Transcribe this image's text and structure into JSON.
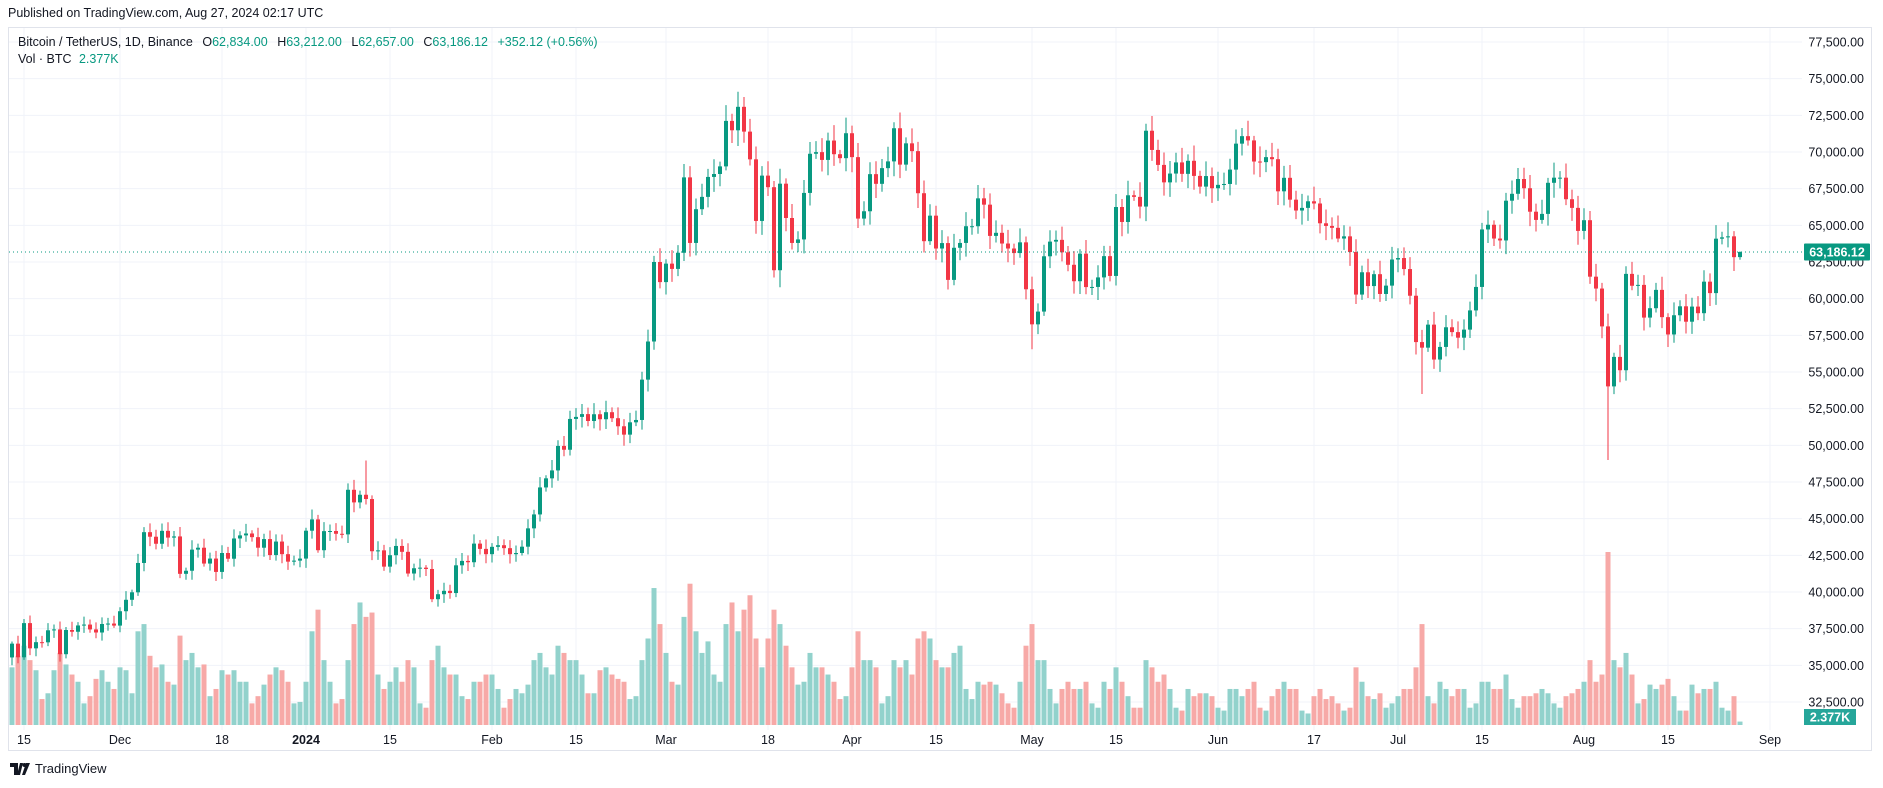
{
  "published": "Published on TradingView.com, Aug 27, 2024 02:17 UTC",
  "legend": {
    "symbol": "Bitcoin / TetherUS, 1D, Binance",
    "o_label": "O",
    "o": "62,834.00",
    "h_label": "H",
    "h": "63,212.00",
    "l_label": "L",
    "l": "62,657.00",
    "c_label": "C",
    "c": "63,186.12",
    "change": "+352.12 (+0.56%)",
    "vol_label": "Vol · BTC",
    "vol": "2.377K"
  },
  "footer": {
    "brand": "TradingView"
  },
  "colors": {
    "up": "#089981",
    "down": "#F23645",
    "vol_up": "#92D2CC",
    "vol_down": "#F7A9A7",
    "grid": "#F0F3FA",
    "last_price": "#089981",
    "vol_badge": "#26A69A"
  },
  "chart_data": {
    "type": "candlestick",
    "title": "Bitcoin / TetherUS, 1D, Binance",
    "start_date": "2023-11-13",
    "first_open": 35540,
    "ylim": [
      31000,
      78600
    ],
    "y_ticks": [
      {
        "value": 77500,
        "label": "77,500.00"
      },
      {
        "value": 75000,
        "label": "75,000.00"
      },
      {
        "value": 72500,
        "label": "72,500.00"
      },
      {
        "value": 70000,
        "label": "70,000.00"
      },
      {
        "value": 67500,
        "label": "67,500.00"
      },
      {
        "value": 65000,
        "label": "65,000.00"
      },
      {
        "value": 62500,
        "label": "62,500.00"
      },
      {
        "value": 60000,
        "label": "60,000.00"
      },
      {
        "value": 57500,
        "label": "57,500.00"
      },
      {
        "value": 55000,
        "label": "55,000.00"
      },
      {
        "value": 52500,
        "label": "52,500.00"
      },
      {
        "value": 50000,
        "label": "50,000.00"
      },
      {
        "value": 47500,
        "label": "47,500.00"
      },
      {
        "value": 45000,
        "label": "45,000.00"
      },
      {
        "value": 42500,
        "label": "42,500.00"
      },
      {
        "value": 40000,
        "label": "40,000.00"
      },
      {
        "value": 37500,
        "label": "37,500.00"
      },
      {
        "value": 35000,
        "label": "35,000.00"
      },
      {
        "value": 32500,
        "label": "32,500.00"
      }
    ],
    "x_ticks": [
      {
        "date": "2023-11-15",
        "label": "15"
      },
      {
        "date": "2023-12-01",
        "label": "Dec"
      },
      {
        "date": "2023-12-18",
        "label": "18"
      },
      {
        "date": "2024-01-01",
        "label": "2024",
        "bold": true
      },
      {
        "date": "2024-01-15",
        "label": "15"
      },
      {
        "date": "2024-02-01",
        "label": "Feb"
      },
      {
        "date": "2024-02-15",
        "label": "15"
      },
      {
        "date": "2024-03-01",
        "label": "Mar"
      },
      {
        "date": "2024-03-18",
        "label": "18"
      },
      {
        "date": "2024-04-01",
        "label": "Apr"
      },
      {
        "date": "2024-04-15",
        "label": "15"
      },
      {
        "date": "2024-05-01",
        "label": "May"
      },
      {
        "date": "2024-05-15",
        "label": "15"
      },
      {
        "date": "2024-06-01",
        "label": "Jun"
      },
      {
        "date": "2024-06-17",
        "label": "17"
      },
      {
        "date": "2024-07-01",
        "label": "Jul"
      },
      {
        "date": "2024-07-15",
        "label": "15"
      },
      {
        "date": "2024-08-01",
        "label": "Aug"
      },
      {
        "date": "2024-08-15",
        "label": "15"
      },
      {
        "date": "2024-09-01",
        "label": "Sep"
      }
    ],
    "last_price": {
      "value": 63186.12,
      "label": "63,186.12"
    },
    "last_volume": {
      "value": 2.377,
      "label": "2.377K"
    },
    "volume_unit": "K BTC",
    "wick_overrides": {
      "2024-03-14": {
        "high": 73750
      },
      "2024-03-20": {
        "low": 60775
      },
      "2024-08-05": {
        "low": 49000
      },
      "2024-01-11": {
        "high": 48970
      },
      "2024-05-01": {
        "low": 56550
      },
      "2024-07-05": {
        "low": 53500
      }
    },
    "last_candle": {
      "open": 62834.0,
      "high": 63212.0,
      "low": 62657.0,
      "close": 63186.12
    },
    "closes": [
      36480,
      35550,
      37880,
      36160,
      36580,
      36570,
      37390,
      37450,
      35760,
      37410,
      37290,
      37720,
      37780,
      37450,
      37240,
      37820,
      37850,
      37710,
      38690,
      39470,
      39980,
      41980,
      44080,
      43770,
      43290,
      44170,
      43710,
      43790,
      41240,
      41450,
      42890,
      43020,
      41940,
      42280,
      41370,
      42660,
      42270,
      43650,
      43860,
      43990,
      43740,
      43020,
      43610,
      42520,
      43440,
      42580,
      42070,
      42140,
      42280,
      44180,
      44950,
      42850,
      44150,
      44160,
      43970,
      43930,
      46970,
      46110,
      46630,
      46340,
      42780,
      42840,
      41730,
      42510,
      43140,
      42740,
      41260,
      41620,
      41660,
      41570,
      39510,
      39850,
      40080,
      39930,
      41820,
      42120,
      42030,
      43300,
      42940,
      42580,
      43080,
      43190,
      42990,
      42580,
      42660,
      43090,
      44340,
      45290,
      47130,
      47750,
      48290,
      49960,
      49700,
      51800,
      51940,
      52130,
      51660,
      52120,
      51780,
      52260,
      51850,
      51300,
      50730,
      51570,
      51730,
      54480,
      57080,
      62500,
      61130,
      62390,
      62030,
      63130,
      68270,
      63800,
      66100,
      66940,
      68300,
      68500,
      69020,
      72120,
      71480,
      73080,
      71390,
      69500,
      65300,
      68390,
      67600,
      61940,
      67840,
      65500,
      63800,
      64040,
      67210,
      69880,
      69990,
      69460,
      70780,
      69850,
      69580,
      71280,
      69650,
      65460,
      65960,
      68490,
      67830,
      68900,
      69360,
      71620,
      69140,
      70590,
      70060,
      67190,
      63920,
      65660,
      63420,
      63790,
      61280,
      63470,
      63800,
      64940,
      64940,
      66840,
      66410,
      64280,
      64490,
      63760,
      63420,
      63110,
      63840,
      60640,
      58250,
      59120,
      62890,
      63890,
      64010,
      63160,
      62310,
      61190,
      63070,
      60790,
      60800,
      61450,
      62900,
      61550,
      66250,
      65230,
      67050,
      66940,
      66280,
      71450,
      70140,
      69120,
      67930,
      68530,
      69290,
      68510,
      69400,
      68370,
      67640,
      68360,
      67530,
      67760,
      67820,
      68800,
      70570,
      71080,
      70790,
      69350,
      69310,
      69650,
      69510,
      67320,
      68240,
      66750,
      66010,
      66190,
      66640,
      66490,
      65140,
      64960,
      64830,
      64100,
      64250,
      63180,
      60280,
      61800,
      60860,
      61670,
      60320,
      60890,
      62670,
      62770,
      62020,
      60200,
      57040,
      56660,
      58230,
      55850,
      56710,
      58050,
      57720,
      57340,
      57890,
      59200,
      60800,
      64720,
      65040,
      64100,
      63970,
      66680,
      67150,
      68160,
      67530,
      65930,
      65370,
      65780,
      67900,
      68250,
      68250,
      66780,
      66190,
      64620,
      65350,
      61500,
      60690,
      58110,
      54020,
      56030,
      55120,
      61690,
      60880,
      60940,
      58710,
      59350,
      60600,
      58740,
      57560,
      58870,
      59480,
      58430,
      59460,
      59010,
      61160,
      60380,
      64090,
      64180,
      64250,
      62830,
      63186.12
    ],
    "volumes": [
      40,
      48,
      55,
      45,
      38,
      18,
      22,
      38,
      50,
      42,
      35,
      30,
      15,
      20,
      32,
      38,
      30,
      25,
      40,
      38,
      22,
      65,
      70,
      48,
      40,
      42,
      30,
      28,
      62,
      45,
      50,
      40,
      42,
      20,
      25,
      38,
      35,
      38,
      30,
      30,
      15,
      20,
      28,
      35,
      40,
      38,
      30,
      15,
      16,
      30,
      65,
      80,
      45,
      30,
      15,
      18,
      45,
      70,
      85,
      75,
      78,
      35,
      25,
      30,
      40,
      30,
      45,
      40,
      15,
      12,
      45,
      55,
      40,
      35,
      35,
      20,
      18,
      30,
      30,
      35,
      35,
      25,
      12,
      18,
      25,
      22,
      28,
      45,
      50,
      40,
      35,
      55,
      50,
      45,
      45,
      35,
      22,
      22,
      38,
      40,
      35,
      32,
      30,
      18,
      20,
      45,
      60,
      95,
      70,
      50,
      30,
      28,
      75,
      98,
      65,
      50,
      58,
      35,
      30,
      70,
      85,
      65,
      80,
      90,
      60,
      40,
      60,
      80,
      70,
      55,
      40,
      28,
      30,
      50,
      40,
      40,
      35,
      30,
      18,
      20,
      40,
      65,
      45,
      45,
      40,
      15,
      20,
      45,
      40,
      45,
      35,
      60,
      65,
      60,
      45,
      40,
      40,
      50,
      55,
      25,
      18,
      30,
      28,
      30,
      28,
      22,
      15,
      12,
      30,
      55,
      70,
      45,
      45,
      25,
      15,
      25,
      30,
      25,
      25,
      30,
      15,
      12,
      30,
      25,
      40,
      30,
      20,
      12,
      12,
      45,
      40,
      30,
      35,
      25,
      12,
      10,
      25,
      20,
      22,
      22,
      20,
      12,
      10,
      25,
      25,
      20,
      25,
      30,
      12,
      10,
      20,
      25,
      30,
      25,
      25,
      10,
      8,
      20,
      25,
      18,
      20,
      15,
      10,
      12,
      40,
      30,
      20,
      18,
      22,
      12,
      15,
      20,
      25,
      25,
      40,
      70,
      20,
      15,
      30,
      25,
      20,
      25,
      25,
      12,
      15,
      30,
      30,
      25,
      25,
      35,
      18,
      12,
      20,
      20,
      22,
      25,
      22,
      15,
      12,
      20,
      22,
      25,
      30,
      45,
      30,
      35,
      120,
      45,
      40,
      50,
      35,
      15,
      18,
      28,
      25,
      28,
      32,
      20,
      10,
      10,
      28,
      22,
      25,
      25,
      30,
      12,
      10,
      20,
      2.377
    ]
  }
}
